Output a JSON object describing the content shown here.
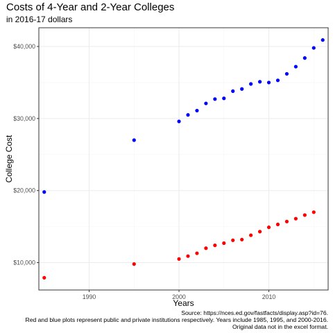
{
  "chart_data": {
    "type": "scatter",
    "title": "Costs of 4-Year and 2-Year Colleges",
    "subtitle": "in 2016-17 dollars",
    "xlabel": "Years",
    "ylabel": "College Cost",
    "xlim": [
      1984.4,
      2016.6
    ],
    "ylim": [
      6200,
      42600
    ],
    "x_ticks": [
      1990,
      2000,
      2010
    ],
    "x_tick_labels": [
      "1990",
      "2000",
      "2010"
    ],
    "y_ticks": [
      10000,
      20000,
      30000,
      40000
    ],
    "y_tick_labels": [
      "$10,000",
      "$20,000",
      "$30,000",
      "$40,000"
    ],
    "grid": true,
    "legend": "none",
    "series": [
      {
        "color": "#0000ff",
        "points": [
          [
            1985,
            19800
          ],
          [
            1995,
            27000
          ],
          [
            2000,
            29600
          ],
          [
            2001,
            30500
          ],
          [
            2002,
            31100
          ],
          [
            2003,
            32100
          ],
          [
            2004,
            32700
          ],
          [
            2005,
            32800
          ],
          [
            2006,
            33800
          ],
          [
            2007,
            34100
          ],
          [
            2008,
            34800
          ],
          [
            2009,
            35100
          ],
          [
            2010,
            35000
          ],
          [
            2011,
            35300
          ],
          [
            2012,
            36200
          ],
          [
            2013,
            37200
          ],
          [
            2014,
            38400
          ],
          [
            2015,
            39800
          ],
          [
            2016,
            40900
          ]
        ]
      },
      {
        "color": "#ff0000",
        "points": [
          [
            1985,
            7900
          ],
          [
            1995,
            9800
          ],
          [
            2000,
            10500
          ],
          [
            2001,
            10900
          ],
          [
            2002,
            11300
          ],
          [
            2003,
            12000
          ],
          [
            2004,
            12400
          ],
          [
            2005,
            12700
          ],
          [
            2006,
            13100
          ],
          [
            2007,
            13200
          ],
          [
            2008,
            13800
          ],
          [
            2009,
            14300
          ],
          [
            2010,
            14900
          ],
          [
            2011,
            15300
          ],
          [
            2012,
            15700
          ],
          [
            2013,
            16100
          ],
          [
            2014,
            16600
          ],
          [
            2015,
            17000
          ]
        ]
      }
    ]
  },
  "caption": {
    "line1": "Source: https://nces.ed.gov/fastfacts/display.asp?id=76.",
    "line2": "Red and blue plots represent public and private institutions respectively. Years include 1985, 1995, and 2000-2016.",
    "line3": "Original data not in the excel format."
  },
  "colors": {
    "panel_border": "#333333",
    "grid_major": "#ebebeb",
    "grid_minor": "#f5f5f5",
    "tick_text": "#4d4d4d"
  }
}
